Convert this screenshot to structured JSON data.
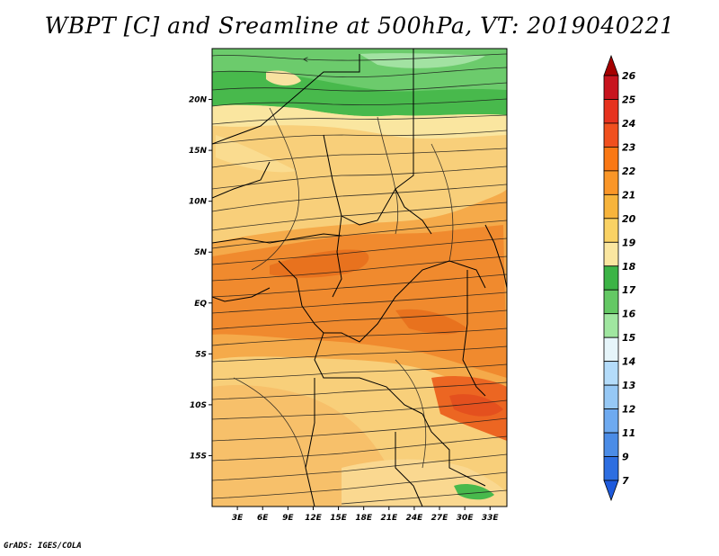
{
  "title": "WBPT [C] and Sreamline at 500hPa, VT: 2019040221",
  "footer": "GrADS: IGES/COLA",
  "map": {
    "lat_labels": [
      "20N",
      "15N",
      "10N",
      "5N",
      "EQ",
      "5S",
      "10S",
      "15S"
    ],
    "lat_values": [
      20,
      15,
      10,
      5,
      0,
      -5,
      -10,
      -15
    ],
    "lon_labels": [
      "3E",
      "6E",
      "9E",
      "12E",
      "15E",
      "18E",
      "21E",
      "24E",
      "27E",
      "30E",
      "33E"
    ],
    "lon_values": [
      3,
      6,
      9,
      12,
      15,
      18,
      21,
      24,
      27,
      30,
      33
    ],
    "extent": {
      "lon_min": 0,
      "lon_max": 35,
      "lat_min": -20,
      "lat_max": 25
    }
  },
  "colorbar": {
    "labels": [
      "26",
      "25",
      "24",
      "23",
      "22",
      "21",
      "20",
      "19",
      "18",
      "17",
      "16",
      "15",
      "14",
      "13",
      "12",
      "11",
      "9",
      "7"
    ],
    "colors": [
      "#a50000",
      "#c8141e",
      "#e6321e",
      "#f0501e",
      "#fa7814",
      "#fa9628",
      "#f7b43c",
      "#fad264",
      "#fae6a0",
      "#3cb446",
      "#64c864",
      "#a0e6a0",
      "#e6f5fa",
      "#b4dcfa",
      "#96c8f5",
      "#6eaaf0",
      "#4b8ce6",
      "#2d6ee1",
      "#1e5adc"
    ]
  }
}
